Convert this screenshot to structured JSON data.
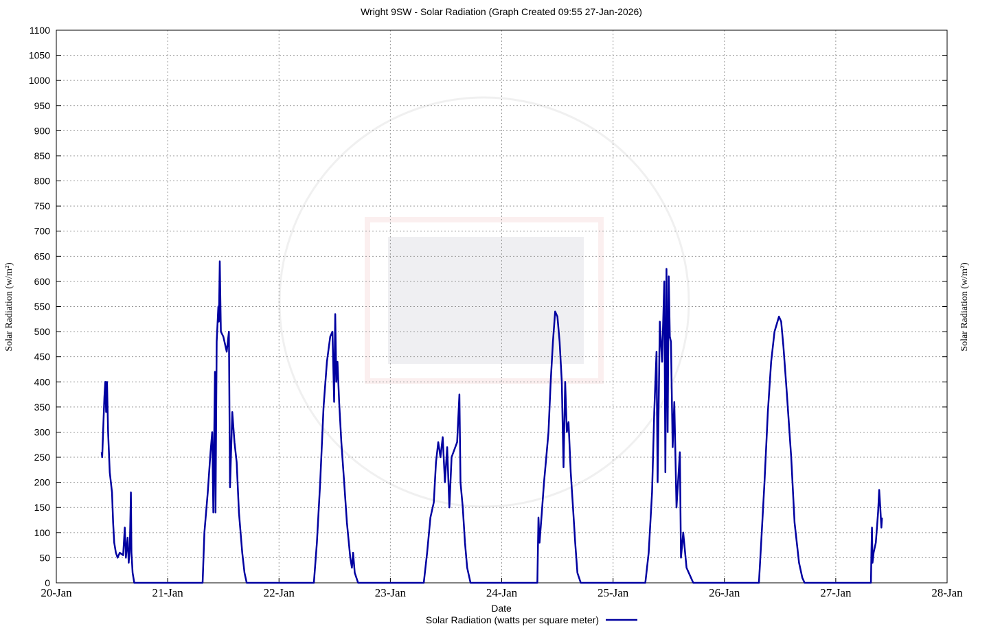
{
  "chart_data": {
    "type": "line",
    "title": "Wright 9SW - Solar Radiation (Graph Created 09:55 27-Jan-2026)",
    "xlabel": "Date",
    "ylabel": "Solar Radiation (w/m²)",
    "grid": true,
    "legend": "bottom",
    "xlim": [
      0,
      8
    ],
    "xticks": [
      {
        "value": 0,
        "label": "20-Jan"
      },
      {
        "value": 1,
        "label": "21-Jan"
      },
      {
        "value": 2,
        "label": "22-Jan"
      },
      {
        "value": 3,
        "label": "23-Jan"
      },
      {
        "value": 4,
        "label": "24-Jan"
      },
      {
        "value": 5,
        "label": "25-Jan"
      },
      {
        "value": 6,
        "label": "26-Jan"
      },
      {
        "value": 7,
        "label": "27-Jan"
      },
      {
        "value": 8,
        "label": "28-Jan"
      }
    ],
    "ylim": [
      0,
      1100
    ],
    "yticks": [
      0,
      50,
      100,
      150,
      200,
      250,
      300,
      350,
      400,
      450,
      500,
      550,
      600,
      650,
      700,
      750,
      800,
      850,
      900,
      950,
      1000,
      1050,
      1100
    ],
    "series": [
      {
        "name": "Solar Radiation (watts per square meter)",
        "color": "#0000a0",
        "x": [
          0.407,
          0.412,
          0.425,
          0.432,
          0.44,
          0.447,
          0.455,
          0.465,
          0.48,
          0.5,
          0.51,
          0.52,
          0.535,
          0.55,
          0.57,
          0.6,
          0.615,
          0.625,
          0.64,
          0.65,
          0.66,
          0.67,
          0.675,
          0.685,
          0.7,
          1.314,
          1.33,
          1.36,
          1.385,
          1.4,
          1.41,
          1.425,
          1.43,
          1.44,
          1.455,
          1.46,
          1.468,
          1.478,
          1.5,
          1.53,
          1.55,
          1.56,
          1.58,
          1.6,
          1.62,
          1.64,
          1.67,
          1.69,
          1.71,
          2.313,
          2.34,
          2.37,
          2.4,
          2.43,
          2.46,
          2.48,
          2.495,
          2.505,
          2.515,
          2.525,
          2.54,
          2.56,
          2.585,
          2.61,
          2.64,
          2.655,
          2.665,
          2.68,
          2.71,
          3.3,
          3.33,
          3.36,
          3.39,
          3.41,
          3.43,
          3.45,
          3.47,
          3.49,
          3.51,
          3.53,
          3.55,
          3.6,
          3.62,
          3.63,
          3.65,
          3.67,
          3.69,
          3.72,
          4.32,
          4.33,
          4.34,
          4.36,
          4.38,
          4.4,
          4.42,
          4.44,
          4.46,
          4.48,
          4.5,
          4.52,
          4.54,
          4.555,
          4.57,
          4.585,
          4.6,
          4.62,
          4.64,
          4.66,
          4.68,
          4.71,
          5.29,
          5.32,
          5.35,
          5.37,
          5.39,
          5.4,
          5.42,
          5.44,
          5.46,
          5.47,
          5.48,
          5.49,
          5.5,
          5.51,
          5.52,
          5.535,
          5.55,
          5.57,
          5.6,
          5.61,
          5.63,
          5.66,
          5.72,
          6.31,
          6.33,
          6.36,
          6.39,
          6.42,
          6.45,
          6.49,
          6.51,
          6.53,
          6.56,
          6.6,
          6.63,
          6.67,
          6.7,
          6.72,
          7.316,
          7.32,
          7.325,
          7.33,
          7.34,
          7.36,
          7.38,
          7.39,
          7.4,
          7.41,
          7.415
        ],
        "values": [
          260,
          250,
          330,
          370,
          400,
          340,
          400,
          300,
          220,
          180,
          120,
          80,
          60,
          50,
          60,
          55,
          110,
          50,
          90,
          40,
          70,
          180,
          60,
          20,
          0,
          0,
          100,
          180,
          260,
          300,
          140,
          420,
          140,
          480,
          550,
          520,
          640,
          500,
          490,
          460,
          500,
          190,
          340,
          280,
          240,
          140,
          60,
          20,
          0,
          0,
          80,
          200,
          350,
          440,
          490,
          500,
          360,
          535,
          400,
          440,
          360,
          280,
          200,
          120,
          50,
          30,
          60,
          20,
          0,
          0,
          60,
          130,
          160,
          240,
          280,
          250,
          290,
          200,
          270,
          150,
          250,
          280,
          375,
          200,
          150,
          80,
          30,
          0,
          0,
          130,
          80,
          140,
          200,
          250,
          300,
          400,
          480,
          540,
          530,
          480,
          400,
          230,
          400,
          300,
          320,
          220,
          150,
          80,
          20,
          0,
          0,
          60,
          180,
          340,
          460,
          200,
          520,
          440,
          600,
          220,
          625,
          300,
          610,
          490,
          480,
          270,
          360,
          150,
          260,
          50,
          100,
          30,
          0,
          0,
          80,
          200,
          340,
          440,
          500,
          530,
          520,
          470,
          380,
          250,
          120,
          40,
          10,
          0,
          0,
          60,
          110,
          40,
          60,
          80,
          140,
          185,
          150,
          110,
          130
        ]
      }
    ]
  }
}
